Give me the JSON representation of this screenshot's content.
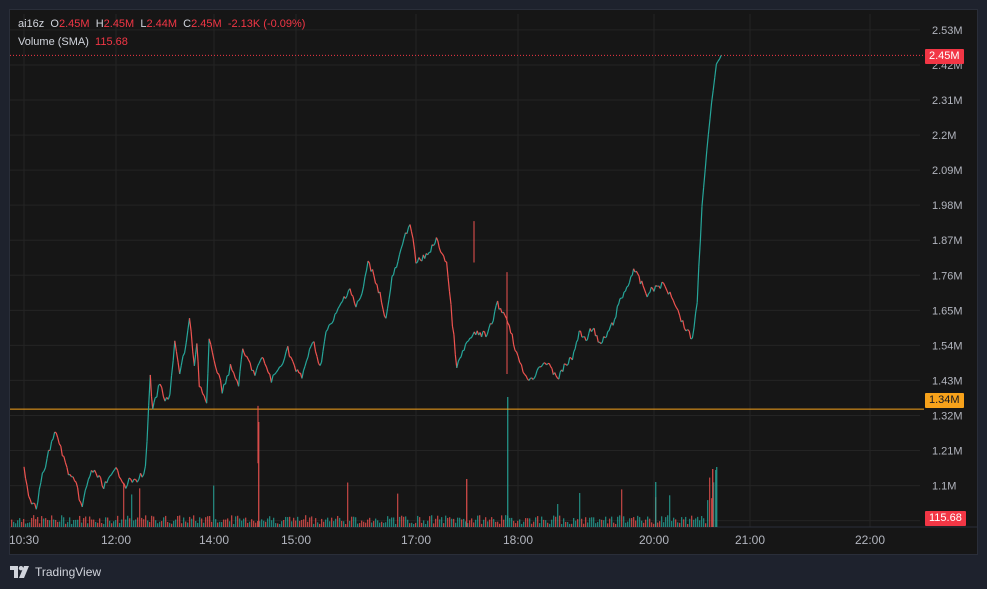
{
  "legend": {
    "symbol": "ai16z",
    "open_label": "O",
    "open": "2.45M",
    "high_label": "H",
    "high": "2.45M",
    "low_label": "L",
    "low": "2.44M",
    "close_label": "C",
    "close": "2.45M",
    "change": "-2.13K (-0.09%)",
    "volume_label": "Volume (SMA)",
    "volume_value": "115.68"
  },
  "price_tags": {
    "last": "2.45M",
    "horizontal_line": "1.34M",
    "volume": "115.68"
  },
  "brand": "TradingView",
  "colors": {
    "background": "#161616",
    "up": "#26a69a",
    "down": "#ef5350",
    "last_price_tag": "#f23645",
    "horizontal_line": "#f7a21b",
    "grid": "#242424"
  },
  "chart_data": {
    "type": "line",
    "x_ticks": [
      "10:30",
      "12:00",
      "14:00",
      "15:00",
      "17:00",
      "18:00",
      "20:00",
      "21:00",
      "22:00"
    ],
    "y_ticks": [
      "2.53M",
      "2.42M",
      "2.31M",
      "2.2M",
      "2.09M",
      "1.98M",
      "1.87M",
      "1.76M",
      "1.65M",
      "1.54M",
      "1.43M",
      "1.32M",
      "1.21M",
      "1.1M",
      "990K"
    ],
    "y_tick_values": [
      2.53,
      2.42,
      2.31,
      2.2,
      2.09,
      1.98,
      1.87,
      1.76,
      1.65,
      1.54,
      1.43,
      1.32,
      1.21,
      1.1,
      0.99
    ],
    "ylim": [
      0.97,
      2.58
    ],
    "xlim": [
      10.5,
      23.0
    ],
    "series": [
      {
        "x": [
          10.5,
          10.6,
          10.7,
          10.8,
          10.9,
          11.0,
          11.1,
          11.2,
          11.35,
          11.45,
          11.5,
          11.6,
          11.7,
          11.8,
          11.9,
          12.0,
          12.1,
          12.2,
          12.3,
          12.4,
          12.5,
          12.6,
          12.7,
          12.75,
          12.8,
          12.9,
          13.0,
          13.1,
          13.2,
          13.3,
          13.4,
          13.5,
          13.6,
          13.65,
          13.7,
          13.8,
          13.85,
          13.9,
          14.0,
          14.1,
          14.2,
          14.3,
          14.35,
          14.4,
          14.5,
          14.55,
          14.6,
          14.7,
          14.8,
          14.9,
          15.0,
          15.1,
          15.2,
          15.3,
          15.4,
          15.5,
          15.6,
          15.7,
          15.8,
          15.9,
          16.0,
          16.1,
          16.2,
          16.3,
          16.4,
          16.5,
          16.6,
          16.7,
          16.8,
          16.9,
          17.0,
          17.1,
          17.2,
          17.3,
          17.4,
          17.5,
          17.6,
          17.7,
          17.8,
          17.9,
          18.0,
          18.05,
          18.1,
          18.2,
          18.3,
          18.4,
          18.5,
          18.6,
          18.7,
          18.8,
          18.9,
          19.0,
          19.1,
          19.2,
          19.3,
          19.4,
          19.5,
          19.6,
          19.7,
          19.8,
          19.9,
          20.0,
          20.1,
          20.2,
          20.3,
          20.4,
          20.45,
          20.5,
          20.55,
          20.6,
          20.65,
          20.7
        ],
        "y": [
          1.16,
          1.05,
          1.03,
          1.13,
          1.2,
          1.27,
          1.22,
          1.15,
          1.1,
          1.03,
          1.08,
          1.15,
          1.13,
          1.1,
          1.12,
          1.15,
          1.13,
          1.1,
          1.12,
          1.11,
          1.13,
          1.15,
          1.44,
          1.33,
          1.37,
          1.42,
          1.36,
          1.39,
          1.55,
          1.45,
          1.52,
          1.62,
          1.48,
          1.55,
          1.42,
          1.38,
          1.35,
          1.55,
          1.5,
          1.4,
          1.47,
          1.42,
          1.52,
          1.5,
          1.45,
          1.48,
          1.5,
          1.43,
          1.47,
          1.53,
          1.46,
          1.44,
          1.51,
          1.55,
          1.47,
          1.58,
          1.61,
          1.65,
          1.69,
          1.72,
          1.66,
          1.7,
          1.8,
          1.76,
          1.7,
          1.62,
          1.75,
          1.8,
          1.87,
          1.93,
          1.8,
          1.82,
          1.87,
          1.8,
          1.47,
          1.55,
          1.58,
          1.57,
          1.67,
          1.62,
          1.5,
          1.47,
          1.45,
          1.43,
          1.47,
          1.49,
          1.46,
          1.44,
          1.48,
          1.5,
          1.58,
          1.56,
          1.6,
          1.54,
          1.57,
          1.61,
          1.68,
          1.72,
          1.78,
          1.74,
          1.7,
          1.72,
          1.73,
          1.69,
          1.61,
          1.56,
          1.68,
          1.98,
          2.15,
          2.3,
          2.42,
          2.45
        ]
      }
    ],
    "last_value": 2.45,
    "horizontal_line_value": 1.34,
    "volume": {
      "note": "small volume bars along bottom, spike near 20:40",
      "last_value": 115.68
    },
    "grid": true
  }
}
